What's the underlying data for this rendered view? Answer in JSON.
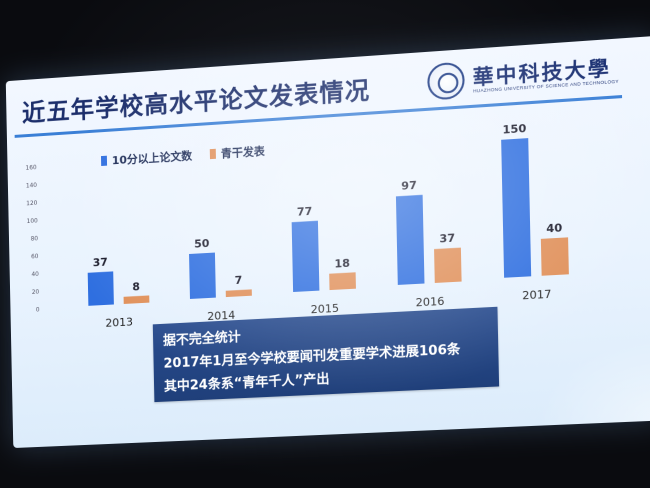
{
  "slide": {
    "title": "近五年学校高水平论文发表情况",
    "logo": {
      "name": "華中科技大學",
      "subtitle": "HUAZHONG UNIVERSITY OF SCIENCE AND TECHNOLOGY"
    },
    "note": {
      "lines": [
        "据不完全统计",
        "2017年1月至今学校要闻刊发重要学术进展106条",
        "其中24条系“青年千人”产出"
      ]
    }
  },
  "colors": {
    "series_blue": "#2f6fe0",
    "series_orange": "#e0905a",
    "title": "#1c2e6b",
    "note_bg": "#2a4d8f"
  },
  "chart_data": {
    "type": "bar",
    "categories": [
      "2013",
      "2014",
      "2015",
      "2016",
      "2017"
    ],
    "series": [
      {
        "name": "10分以上论文数",
        "values": [
          37,
          50,
          77,
          97,
          150
        ]
      },
      {
        "name": "青干发表",
        "values": [
          8,
          7,
          18,
          37,
          40
        ]
      }
    ],
    "y_ticks": [
      "160",
      "140",
      "120",
      "100",
      "80",
      "60",
      "40",
      "20",
      "0"
    ],
    "ylim": [
      0,
      160
    ],
    "grid": false,
    "legend": "top-left",
    "data_labels": true,
    "title": "",
    "xlabel": "",
    "ylabel": ""
  }
}
